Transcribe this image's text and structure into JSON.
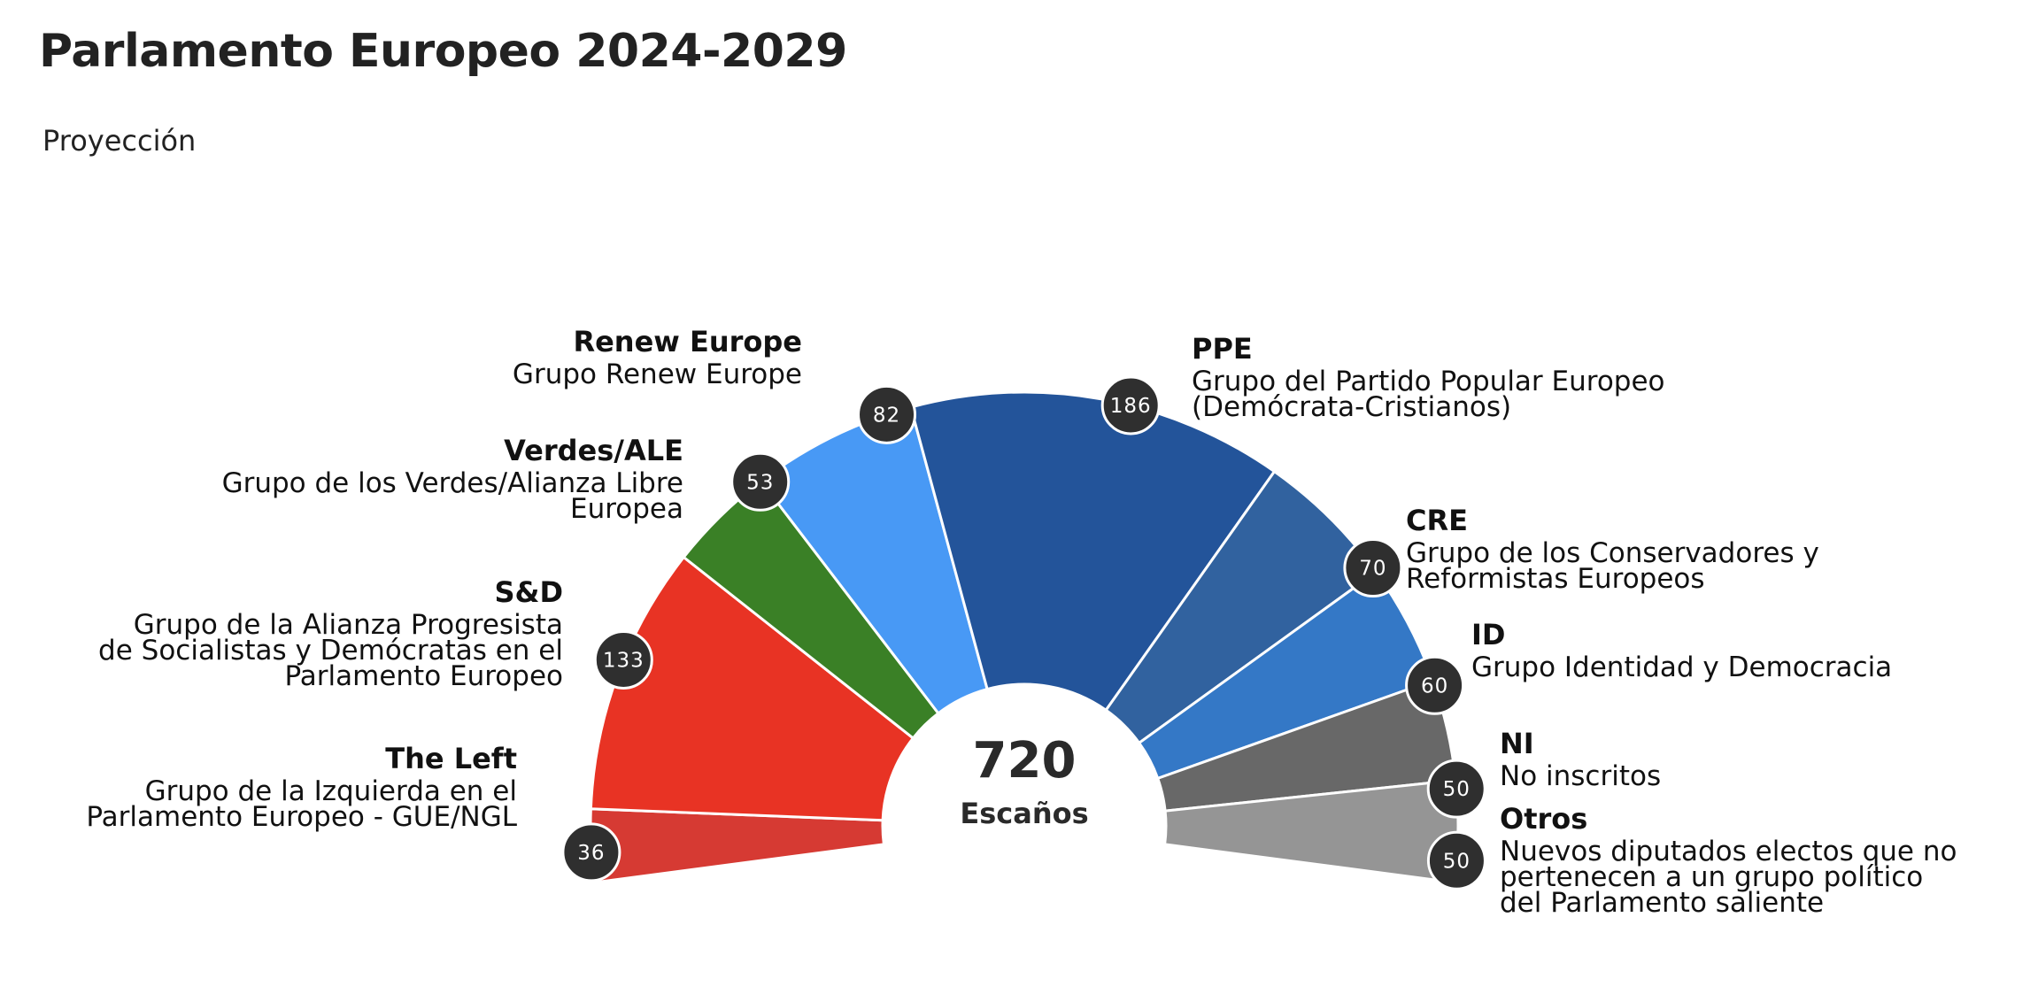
{
  "chart_data": {
    "type": "parliament-semicircle",
    "title": "Parlamento Europeo 2024-2029",
    "subtitle": "Proyección",
    "total": "720",
    "total_label": "Escaños",
    "segments": [
      {
        "key": "the-left",
        "name": "The Left",
        "description": [
          "Grupo de la Izquierda en el",
          "Parlamento Europeo - GUE/NGL"
        ],
        "seats": 36,
        "color": "#d63a33"
      },
      {
        "key": "sd",
        "name": "S&D",
        "description": [
          "Grupo de la Alianza Progresista",
          "de Socialistas y Demócratas en el",
          "Parlamento Europeo"
        ],
        "seats": 133,
        "color": "#e83324"
      },
      {
        "key": "verdes-ale",
        "name": "Verdes/ALE",
        "description": [
          "Grupo de los Verdes/Alianza Libre",
          "Europea"
        ],
        "seats": 53,
        "color": "#3a8026"
      },
      {
        "key": "renew-europe",
        "name": "Renew Europe",
        "description": [
          "Grupo Renew Europe"
        ],
        "seats": 82,
        "color": "#4899f5"
      },
      {
        "key": "ppe",
        "name": "PPE",
        "description": [
          "Grupo del Partido Popular Europeo",
          "(Demócrata-Cristianos)"
        ],
        "seats": 186,
        "color": "#23549a"
      },
      {
        "key": "cre",
        "name": "CRE",
        "description": [
          "Grupo de los Conservadores y",
          "Reformistas Europeos"
        ],
        "seats": 70,
        "color": "#31629f"
      },
      {
        "key": "id",
        "name": "ID",
        "description": [
          "Grupo Identidad y Democracia"
        ],
        "seats": 60,
        "color": "#3478c6"
      },
      {
        "key": "ni",
        "name": "NI",
        "description": [
          "No inscritos"
        ],
        "seats": 50,
        "color": "#686868"
      },
      {
        "key": "otros",
        "name": "Otros",
        "description": [
          "Nuevos diputados electos que no",
          "pertenecen a un grupo político",
          "del Parlamento saliente"
        ],
        "seats": 50,
        "color": "#959595"
      }
    ]
  }
}
